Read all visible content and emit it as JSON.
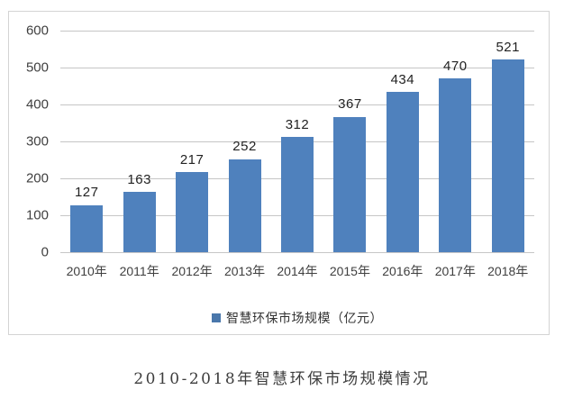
{
  "chart_data": {
    "type": "bar",
    "title": "2010-2018年智慧环保市场规模情况",
    "legend": "智慧环保市场规模（亿元）",
    "categories": [
      "2010年",
      "2011年",
      "2012年",
      "2013年",
      "2014年",
      "2015年",
      "2016年",
      "2017年",
      "2018年"
    ],
    "values": [
      127,
      163,
      217,
      252,
      312,
      367,
      434,
      470,
      521
    ],
    "xlabel": "",
    "ylabel": "",
    "ylim": [
      0,
      600
    ],
    "yticks": [
      0,
      100,
      200,
      300,
      400,
      500,
      600
    ],
    "grid": true,
    "legend_position": "bottom",
    "colors": {
      "bar": "#4f81bd",
      "legend_marker": "#4a77ab",
      "gridline": "#c6c6c6",
      "frame_border": "#d4d4d4",
      "axis_text": "#3f3f3f",
      "value_label": "#222222",
      "caption_text": "#3d3d3d"
    }
  }
}
